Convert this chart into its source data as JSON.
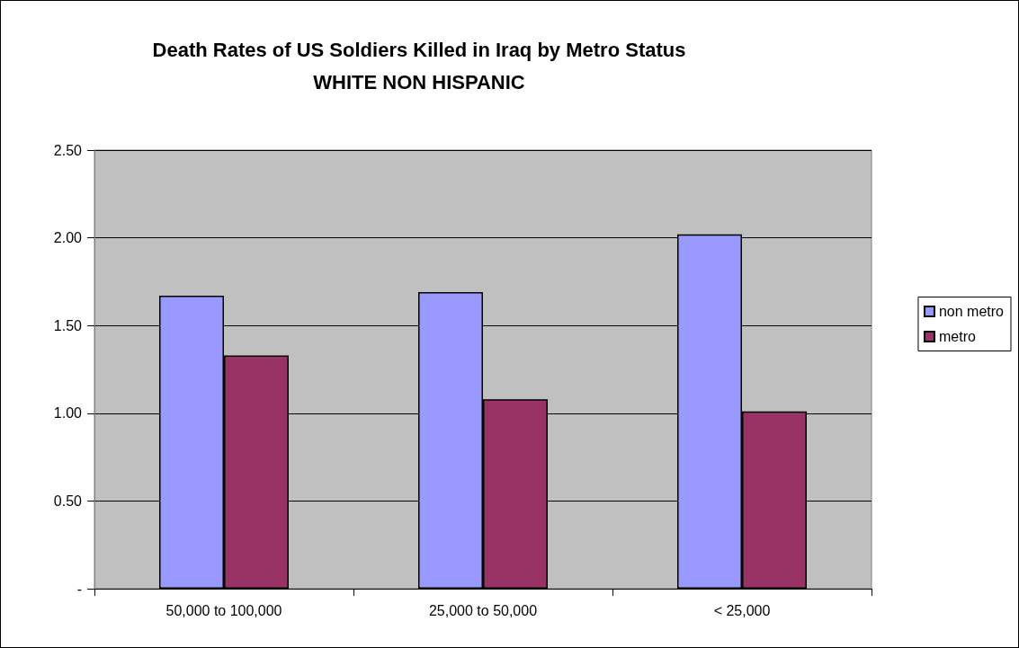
{
  "chart_data": {
    "type": "bar",
    "title": "Death Rates of US Soldiers Killed in Iraq by Metro Status",
    "subtitle": "WHITE NON HISPANIC",
    "categories": [
      "50,000 to 100,000",
      "25,000 to 50,000",
      "< 25,000"
    ],
    "series": [
      {
        "name": "non metro",
        "color": "#9999ff",
        "values": [
          1.67,
          1.69,
          2.02
        ]
      },
      {
        "name": "metro",
        "color": "#993366",
        "values": [
          1.33,
          1.08,
          1.01
        ]
      }
    ],
    "ylim": [
      0,
      2.5
    ],
    "yticks": [
      {
        "value": 0,
        "label": "-"
      },
      {
        "value": 0.5,
        "label": "0.50"
      },
      {
        "value": 1,
        "label": "1.00"
      },
      {
        "value": 1.5,
        "label": "1.50"
      },
      {
        "value": 2,
        "label": "2.00"
      },
      {
        "value": 2.5,
        "label": "2.50"
      }
    ],
    "grid": "y",
    "legend": "right"
  }
}
